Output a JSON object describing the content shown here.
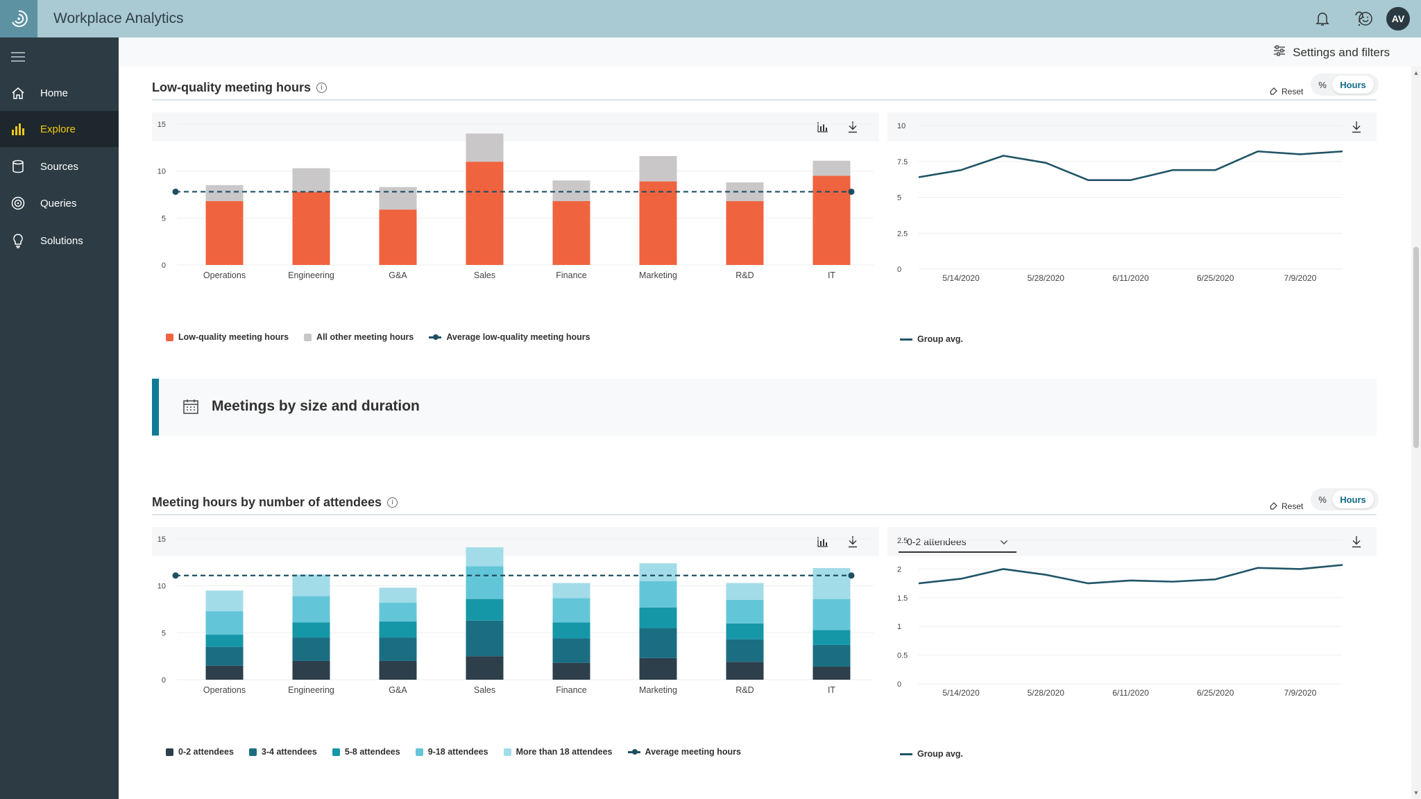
{
  "app": {
    "title": "Workplace Analytics",
    "avatar_initials": "AV",
    "logo_icon": "swirl-logo-icon"
  },
  "topbar_icons": [
    "bell-icon",
    "help-icon",
    "smiley-icon"
  ],
  "sidebar": {
    "items": [
      {
        "label": "Home",
        "icon": "home-icon",
        "active": false
      },
      {
        "label": "Explore",
        "icon": "bar-chart-icon",
        "active": true
      },
      {
        "label": "Sources",
        "icon": "database-icon",
        "active": false
      },
      {
        "label": "Queries",
        "icon": "queries-icon",
        "active": false
      },
      {
        "label": "Solutions",
        "icon": "bulb-icon",
        "active": false
      }
    ]
  },
  "settings": {
    "label": "Settings and filters"
  },
  "section1": {
    "title": "Low-quality meeting hours",
    "reset_label": "Reset",
    "toggle": {
      "percent_label": "%",
      "hours_label": "Hours"
    }
  },
  "section2": {
    "title": "Meeting hours by number of attendees",
    "reset_label": "Reset",
    "toggle": {
      "percent_label": "%",
      "hours_label": "Hours"
    },
    "dropdown_value": "0-2 attendees"
  },
  "banner": {
    "title": "Meetings by size and duration"
  },
  "colors": {
    "low_quality": "#f0633f",
    "other": "#c9c7c8",
    "avg_line": "#1f4e62",
    "line_series": "#1f5466",
    "attendees_0_2": "#2d3f4b",
    "attendees_3_4": "#1b6e82",
    "attendees_5_8": "#1597a8",
    "attendees_9_18": "#63c6d8",
    "attendees_18_plus": "#a2dce8"
  },
  "chart_data": [
    {
      "type": "bar",
      "stacked": true,
      "categories": [
        "Operations",
        "Engineering",
        "G&A",
        "Sales",
        "Finance",
        "Marketing",
        "R&D",
        "IT"
      ],
      "series": [
        {
          "name": "Low-quality meeting hours",
          "values": [
            6.8,
            7.8,
            5.9,
            11.0,
            6.8,
            8.9,
            6.8,
            9.5
          ]
        },
        {
          "name": "All other meeting hours",
          "values": [
            1.7,
            2.5,
            2.4,
            3.0,
            2.2,
            2.7,
            2.0,
            1.6
          ]
        }
      ],
      "average": {
        "name": "Average low-quality meeting hours",
        "value": 7.8
      },
      "yticks": [
        "0",
        "5",
        "10",
        "15"
      ],
      "ylim": [
        0,
        15
      ],
      "legend": "bottom-left"
    },
    {
      "type": "line",
      "x": [
        "5/7/2020",
        "5/14/2020",
        "5/21/2020",
        "5/28/2020",
        "6/4/2020",
        "6/11/2020",
        "6/18/2020",
        "6/25/2020",
        "7/2/2020",
        "7/9/2020",
        "7/16/2020"
      ],
      "xticks": [
        "5/14/2020",
        "5/28/2020",
        "6/11/2020",
        "6/25/2020",
        "7/9/2020"
      ],
      "series": [
        {
          "name": "Group avg.",
          "values": [
            6.4,
            6.9,
            7.9,
            7.4,
            6.2,
            6.2,
            6.9,
            6.9,
            8.2,
            8.0,
            8.2
          ]
        }
      ],
      "yticks": [
        "0",
        "2.5",
        "5",
        "7.5",
        "10"
      ],
      "ylim": [
        0,
        10
      ],
      "legend": "bottom-left"
    },
    {
      "type": "bar",
      "stacked": true,
      "categories": [
        "Operations",
        "Engineering",
        "G&A",
        "Sales",
        "Finance",
        "Marketing",
        "R&D",
        "IT"
      ],
      "series": [
        {
          "name": "0-2 attendees",
          "values": [
            1.5,
            2.0,
            2.0,
            2.5,
            1.8,
            2.3,
            1.9,
            1.4
          ]
        },
        {
          "name": "3-4 attendees",
          "values": [
            2.0,
            2.5,
            2.5,
            3.8,
            2.6,
            3.2,
            2.4,
            2.3
          ]
        },
        {
          "name": "5-8 attendees",
          "values": [
            1.3,
            1.6,
            1.7,
            2.3,
            1.7,
            2.2,
            1.7,
            1.6
          ]
        },
        {
          "name": "9-18 attendees",
          "values": [
            2.5,
            2.8,
            2.0,
            3.5,
            2.6,
            2.8,
            2.5,
            3.3
          ]
        },
        {
          "name": "More than 18 attendees",
          "values": [
            2.2,
            2.3,
            1.6,
            2.0,
            1.6,
            1.9,
            1.8,
            3.3
          ]
        }
      ],
      "average": {
        "name": "Average meeting hours",
        "value": 11.1
      },
      "yticks": [
        "0",
        "5",
        "10",
        "15"
      ],
      "ylim": [
        0,
        15
      ],
      "legend": "bottom-left"
    },
    {
      "type": "line",
      "x": [
        "5/7/2020",
        "5/14/2020",
        "5/21/2020",
        "5/28/2020",
        "6/4/2020",
        "6/11/2020",
        "6/18/2020",
        "6/25/2020",
        "7/2/2020",
        "7/9/2020",
        "7/16/2020"
      ],
      "xticks": [
        "5/14/2020",
        "5/28/2020",
        "6/11/2020",
        "6/25/2020",
        "7/9/2020"
      ],
      "series": [
        {
          "name": "Group avg.",
          "values": [
            1.75,
            1.83,
            2.0,
            1.9,
            1.75,
            1.8,
            1.78,
            1.82,
            2.02,
            2.0,
            2.07
          ]
        }
      ],
      "yticks": [
        "0",
        "0.5",
        "1",
        "1.5",
        "2",
        "2.5"
      ],
      "ylim": [
        0,
        2.5
      ],
      "legend": "bottom-left"
    }
  ]
}
